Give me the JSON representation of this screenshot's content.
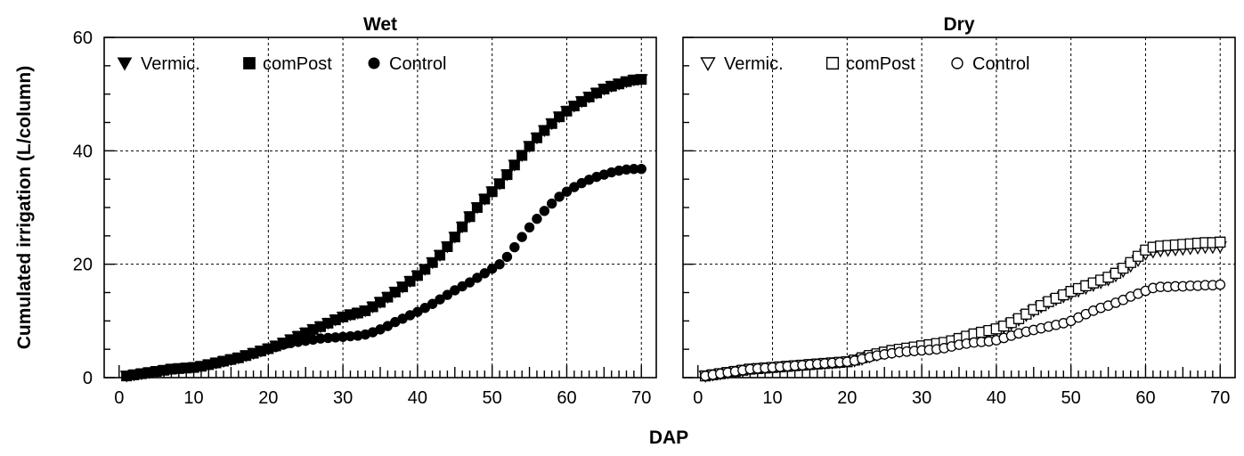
{
  "chart_data": {
    "type": "scatter",
    "xlabel": "DAP",
    "ylabel": "Cumulated irrigation (L/column)",
    "xlim": [
      -2,
      72
    ],
    "ylim": [
      0,
      60
    ],
    "xticks": [
      0,
      10,
      20,
      30,
      40,
      50,
      60,
      70
    ],
    "yticks": [
      0,
      20,
      40,
      60
    ],
    "grid": true,
    "legend_position": "top-left",
    "panels": [
      {
        "title": "Wet",
        "marker_fill": "filled",
        "series": [
          {
            "name": "Vermic.",
            "marker": "triangle-down",
            "x": [
              1,
              2,
              3,
              4,
              5,
              6,
              7,
              8,
              9,
              10,
              11,
              12,
              13,
              14,
              15,
              16,
              17,
              18,
              19,
              20,
              21,
              22,
              23,
              24,
              25,
              26,
              27,
              28,
              29,
              30,
              31,
              32,
              33,
              34,
              35,
              36,
              37,
              38,
              39,
              40,
              41,
              42,
              43,
              44,
              45,
              46,
              47,
              48,
              49,
              50,
              51,
              52,
              53,
              54,
              55,
              56,
              57,
              58,
              59,
              60,
              61,
              62,
              63,
              64,
              65,
              66,
              67,
              68,
              69,
              70
            ],
            "y": [
              0.3,
              0.5,
              0.7,
              0.9,
              1.1,
              1.3,
              1.5,
              1.6,
              1.7,
              1.8,
              2.0,
              2.3,
              2.6,
              2.9,
              3.2,
              3.5,
              3.9,
              4.3,
              4.7,
              5.1,
              5.6,
              6.1,
              6.7,
              7.3,
              7.9,
              8.5,
              9.0,
              9.6,
              10.2,
              10.7,
              11.1,
              11.4,
              11.8,
              12.5,
              13.3,
              14.2,
              15.1,
              16.0,
              17.0,
              18.0,
              19.1,
              20.3,
              21.6,
              23.1,
              24.8,
              26.6,
              28.4,
              30.0,
              31.5,
              32.8,
              34.2,
              35.8,
              37.5,
              39.2,
              40.8,
              42.3,
              43.6,
              44.8,
              46.0,
              47.0,
              47.9,
              48.7,
              49.5,
              50.2,
              50.9,
              51.4,
              51.8,
              52.2,
              52.5,
              52.6
            ]
          },
          {
            "name": "comPost",
            "marker": "square",
            "x": [
              1,
              2,
              3,
              4,
              5,
              6,
              7,
              8,
              9,
              10,
              11,
              12,
              13,
              14,
              15,
              16,
              17,
              18,
              19,
              20,
              21,
              22,
              23,
              24,
              25,
              26,
              27,
              28,
              29,
              30,
              31,
              32,
              33,
              34,
              35,
              36,
              37,
              38,
              39,
              40,
              41,
              42,
              43,
              44,
              45,
              46,
              47,
              48,
              49,
              50,
              51,
              52,
              53,
              54,
              55,
              56,
              57,
              58,
              59,
              60,
              61,
              62,
              63,
              64,
              65,
              66,
              67,
              68,
              69,
              70
            ],
            "y": [
              0.3,
              0.5,
              0.7,
              0.9,
              1.1,
              1.3,
              1.5,
              1.6,
              1.7,
              1.8,
              2.0,
              2.3,
              2.6,
              2.9,
              3.2,
              3.5,
              3.9,
              4.3,
              4.7,
              5.1,
              5.6,
              6.1,
              6.7,
              7.3,
              7.9,
              8.5,
              9.0,
              9.6,
              10.2,
              10.7,
              11.1,
              11.4,
              11.8,
              12.5,
              13.3,
              14.2,
              15.1,
              16.0,
              17.0,
              18.0,
              19.1,
              20.3,
              21.6,
              23.1,
              24.8,
              26.6,
              28.4,
              30.0,
              31.5,
              32.8,
              34.2,
              35.8,
              37.5,
              39.2,
              40.8,
              42.3,
              43.6,
              44.8,
              46.0,
              47.0,
              47.9,
              48.7,
              49.5,
              50.2,
              50.9,
              51.4,
              51.8,
              52.2,
              52.5,
              52.6
            ]
          },
          {
            "name": "Control",
            "marker": "circle",
            "x": [
              1,
              2,
              3,
              4,
              5,
              6,
              7,
              8,
              9,
              10,
              11,
              12,
              13,
              14,
              15,
              16,
              17,
              18,
              19,
              20,
              21,
              22,
              23,
              24,
              25,
              26,
              27,
              28,
              29,
              30,
              31,
              32,
              33,
              34,
              35,
              36,
              37,
              38,
              39,
              40,
              41,
              42,
              43,
              44,
              45,
              46,
              47,
              48,
              49,
              50,
              51,
              52,
              53,
              54,
              55,
              56,
              57,
              58,
              59,
              60,
              61,
              62,
              63,
              64,
              65,
              66,
              67,
              68,
              69,
              70
            ],
            "y": [
              0.3,
              0.5,
              0.7,
              0.9,
              1.1,
              1.3,
              1.5,
              1.6,
              1.7,
              1.8,
              2.0,
              2.2,
              2.5,
              2.8,
              3.1,
              3.4,
              3.8,
              4.2,
              4.6,
              5.0,
              5.4,
              5.8,
              6.1,
              6.3,
              6.5,
              6.7,
              6.9,
              7.0,
              7.1,
              7.2,
              7.3,
              7.4,
              7.6,
              8.0,
              8.5,
              9.1,
              9.8,
              10.4,
              11.0,
              11.6,
              12.3,
              13.0,
              13.8,
              14.6,
              15.4,
              16.1,
              16.8,
              17.6,
              18.4,
              19.2,
              20.0,
              21.3,
              23.0,
              24.8,
              26.5,
              28.0,
              29.4,
              30.7,
              31.9,
              32.8,
              33.6,
              34.3,
              34.9,
              35.4,
              35.8,
              36.2,
              36.5,
              36.7,
              36.8,
              36.8
            ]
          }
        ]
      },
      {
        "title": "Dry",
        "marker_fill": "open",
        "series": [
          {
            "name": "Vermic.",
            "marker": "triangle-down",
            "x": [
              1,
              2,
              3,
              4,
              5,
              6,
              7,
              8,
              9,
              10,
              11,
              12,
              13,
              14,
              15,
              16,
              17,
              18,
              19,
              20,
              21,
              22,
              23,
              24,
              25,
              26,
              27,
              28,
              29,
              30,
              31,
              32,
              33,
              34,
              35,
              36,
              37,
              38,
              39,
              40,
              41,
              42,
              43,
              44,
              45,
              46,
              47,
              48,
              49,
              50,
              51,
              52,
              53,
              54,
              55,
              56,
              57,
              58,
              59,
              60,
              61,
              62,
              63,
              64,
              65,
              66,
              67,
              68,
              69,
              70
            ],
            "y": [
              0.3,
              0.5,
              0.7,
              0.9,
              1.1,
              1.3,
              1.5,
              1.6,
              1.7,
              1.8,
              1.9,
              2.0,
              2.1,
              2.2,
              2.3,
              2.4,
              2.5,
              2.6,
              2.7,
              2.8,
              3.0,
              3.3,
              3.7,
              4.0,
              4.3,
              4.5,
              4.7,
              4.9,
              5.1,
              5.3,
              5.5,
              5.7,
              5.9,
              6.2,
              6.6,
              7.0,
              7.4,
              7.8,
              8.1,
              8.4,
              8.9,
              9.5,
              10.2,
              11.0,
              11.8,
              12.5,
              13.2,
              13.8,
              14.3,
              14.8,
              15.3,
              15.8,
              16.3,
              16.8,
              17.3,
              18.0,
              18.8,
              19.7,
              20.7,
              21.8,
              22.2,
              22.4,
              22.5,
              22.6,
              22.7,
              22.8,
              22.9,
              23.0,
              23.0,
              23.1
            ]
          },
          {
            "name": "comPost",
            "marker": "square",
            "x": [
              1,
              2,
              3,
              4,
              5,
              6,
              7,
              8,
              9,
              10,
              11,
              12,
              13,
              14,
              15,
              16,
              17,
              18,
              19,
              20,
              21,
              22,
              23,
              24,
              25,
              26,
              27,
              28,
              29,
              30,
              31,
              32,
              33,
              34,
              35,
              36,
              37,
              38,
              39,
              40,
              41,
              42,
              43,
              44,
              45,
              46,
              47,
              48,
              49,
              50,
              51,
              52,
              53,
              54,
              55,
              56,
              57,
              58,
              59,
              60,
              61,
              62,
              63,
              64,
              65,
              66,
              67,
              68,
              69,
              70
            ],
            "y": [
              0.3,
              0.5,
              0.7,
              0.9,
              1.1,
              1.3,
              1.5,
              1.6,
              1.7,
              1.8,
              1.9,
              2.0,
              2.1,
              2.2,
              2.3,
              2.4,
              2.5,
              2.6,
              2.7,
              2.8,
              3.1,
              3.5,
              3.9,
              4.2,
              4.5,
              4.8,
              5.0,
              5.2,
              5.4,
              5.6,
              5.8,
              6.0,
              6.2,
              6.5,
              6.9,
              7.3,
              7.7,
              8.0,
              8.3,
              8.6,
              9.1,
              9.7,
              10.4,
              11.2,
              12.0,
              12.7,
              13.4,
              14.0,
              14.6,
              15.2,
              15.7,
              16.2,
              16.7,
              17.2,
              17.7,
              18.4,
              19.3,
              20.3,
              21.4,
              22.5,
              23.0,
              23.2,
              23.3,
              23.4,
              23.5,
              23.6,
              23.7,
              23.8,
              23.8,
              23.9
            ]
          },
          {
            "name": "Control",
            "marker": "circle",
            "x": [
              1,
              2,
              3,
              4,
              5,
              6,
              7,
              8,
              9,
              10,
              11,
              12,
              13,
              14,
              15,
              16,
              17,
              18,
              19,
              20,
              21,
              22,
              23,
              24,
              25,
              26,
              27,
              28,
              29,
              30,
              31,
              32,
              33,
              34,
              35,
              36,
              37,
              38,
              39,
              40,
              41,
              42,
              43,
              44,
              45,
              46,
              47,
              48,
              49,
              50,
              51,
              52,
              53,
              54,
              55,
              56,
              57,
              58,
              59,
              60,
              61,
              62,
              63,
              64,
              65,
              66,
              67,
              68,
              69,
              70
            ],
            "y": [
              0.3,
              0.5,
              0.7,
              0.9,
              1.1,
              1.3,
              1.5,
              1.6,
              1.7,
              1.8,
              1.9,
              2.0,
              2.1,
              2.2,
              2.3,
              2.4,
              2.5,
              2.6,
              2.7,
              2.8,
              3.0,
              3.3,
              3.6,
              3.9,
              4.1,
              4.3,
              4.5,
              4.6,
              4.7,
              4.8,
              4.9,
              5.0,
              5.2,
              5.5,
              5.8,
              6.0,
              6.2,
              6.3,
              6.4,
              6.6,
              7.0,
              7.4,
              7.8,
              8.1,
              8.4,
              8.7,
              9.0,
              9.3,
              9.6,
              10.0,
              10.6,
              11.2,
              11.8,
              12.3,
              12.7,
              13.2,
              13.7,
              14.3,
              14.8,
              15.3,
              15.8,
              16.0,
              16.0,
              16.1,
              16.1,
              16.2,
              16.2,
              16.3,
              16.3,
              16.4
            ]
          }
        ]
      }
    ]
  }
}
